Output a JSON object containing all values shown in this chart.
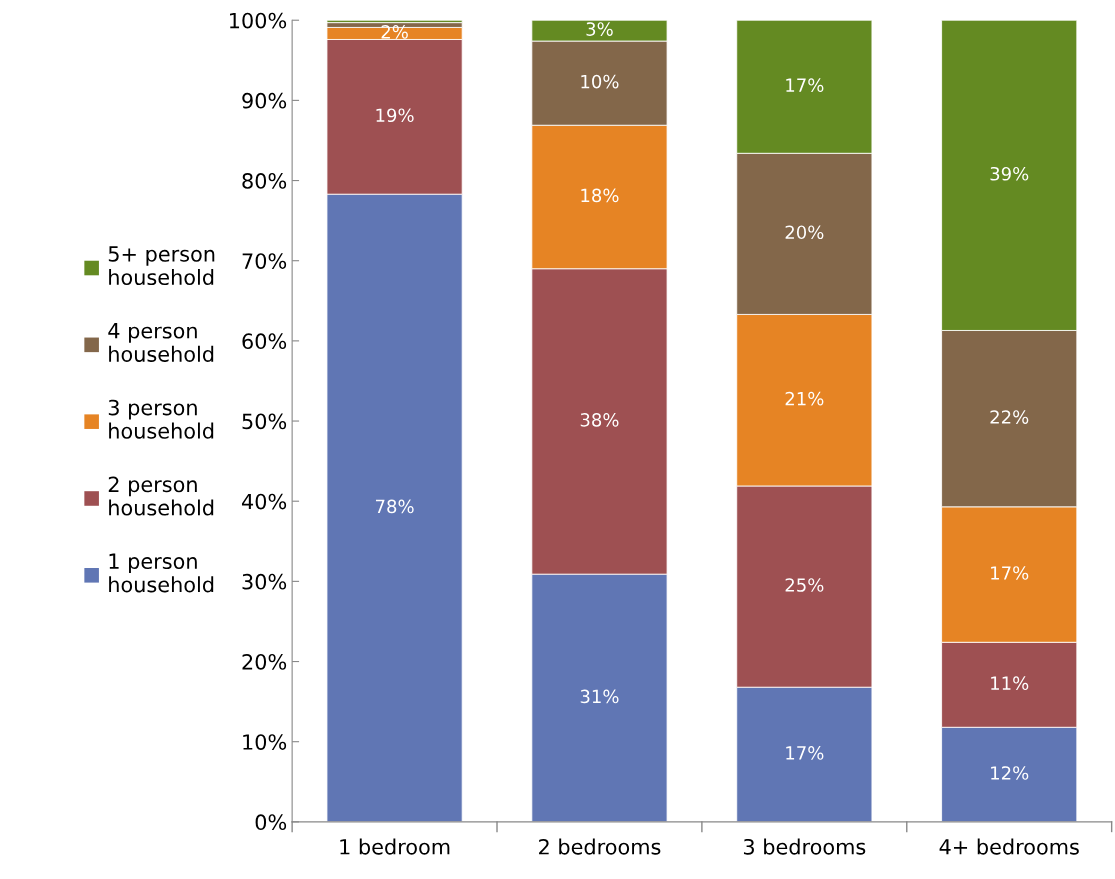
{
  "chart_data": {
    "type": "bar",
    "stacked": true,
    "categories": [
      "1 bedroom",
      "2 bedrooms",
      "3 bedrooms",
      "4+ bedrooms"
    ],
    "series": [
      {
        "name": "1 person household",
        "color": "#6076b4",
        "values": [
          78.3,
          30.9,
          16.8,
          11.8
        ],
        "value_labels": [
          "78%",
          "31%",
          "17%",
          "12%"
        ]
      },
      {
        "name": "2 person household",
        "color": "#9e5052",
        "values": [
          19.3,
          38.1,
          25.1,
          10.6
        ],
        "value_labels": [
          "19%",
          "38%",
          "25%",
          "11%"
        ]
      },
      {
        "name": "3 person household",
        "color": "#e68424",
        "values": [
          1.5,
          17.9,
          21.4,
          16.9
        ],
        "value_labels": [
          "2%",
          "18%",
          "21%",
          "17%"
        ]
      },
      {
        "name": "4 person household",
        "color": "#83674a",
        "values": [
          0.6,
          10.5,
          20.1,
          22.0
        ],
        "value_labels": [
          null,
          "10%",
          "20%",
          "22%"
        ]
      },
      {
        "name": "5+ person household",
        "color": "#648a22",
        "values": [
          0.3,
          2.6,
          16.6,
          38.7
        ],
        "value_labels": [
          null,
          "3%",
          "17%",
          "39%"
        ]
      }
    ],
    "ylim": [
      0,
      100
    ],
    "yticks": [
      {
        "value": 0,
        "label": "0%"
      },
      {
        "value": 10,
        "label": "10%"
      },
      {
        "value": 20,
        "label": "20%"
      },
      {
        "value": 30,
        "label": "30%"
      },
      {
        "value": 40,
        "label": "40%"
      },
      {
        "value": 50,
        "label": "50%"
      },
      {
        "value": 60,
        "label": "60%"
      },
      {
        "value": 70,
        "label": "70%"
      },
      {
        "value": 80,
        "label": "80%"
      },
      {
        "value": 90,
        "label": "90%"
      },
      {
        "value": 100,
        "label": "100%"
      }
    ],
    "legend": "left",
    "grid": false
  }
}
